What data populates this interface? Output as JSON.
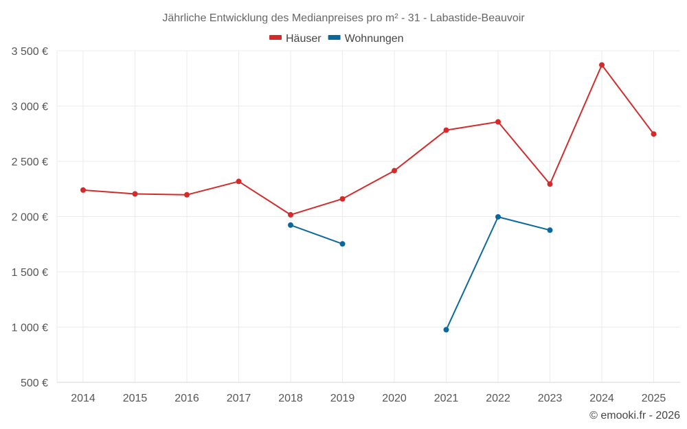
{
  "chart_data": {
    "type": "line",
    "title": "Jährliche Entwicklung des Medianpreises pro m² - 31 - Labastide-Beauvoir",
    "xlabel": "",
    "ylabel": "",
    "categories": [
      "2014",
      "2015",
      "2016",
      "2017",
      "2018",
      "2019",
      "2020",
      "2021",
      "2022",
      "2023",
      "2024",
      "2025"
    ],
    "y_ticks": [
      {
        "value": 500,
        "label": "500 €"
      },
      {
        "value": 1000,
        "label": "1 000 €"
      },
      {
        "value": 1500,
        "label": "1 500 €"
      },
      {
        "value": 2000,
        "label": "2 000 €"
      },
      {
        "value": 2500,
        "label": "2 500 €"
      },
      {
        "value": 3000,
        "label": "3 000 €"
      },
      {
        "value": 3500,
        "label": "3 500 €"
      }
    ],
    "ylim": [
      500,
      3500
    ],
    "grid": true,
    "legend_position": "top-center",
    "series": [
      {
        "name": "Häuser",
        "color": "#d42a2a",
        "values": [
          2240,
          2205,
          2197,
          2318,
          2016,
          2160,
          2415,
          2782,
          2857,
          2294,
          3372,
          2747
        ]
      },
      {
        "name": "Wohnungen",
        "color": "#0a689e",
        "values": [
          null,
          null,
          null,
          null,
          1923,
          1753,
          null,
          976,
          1997,
          1877,
          null,
          null
        ]
      }
    ],
    "credit": "© emooki.fr - 2026"
  }
}
